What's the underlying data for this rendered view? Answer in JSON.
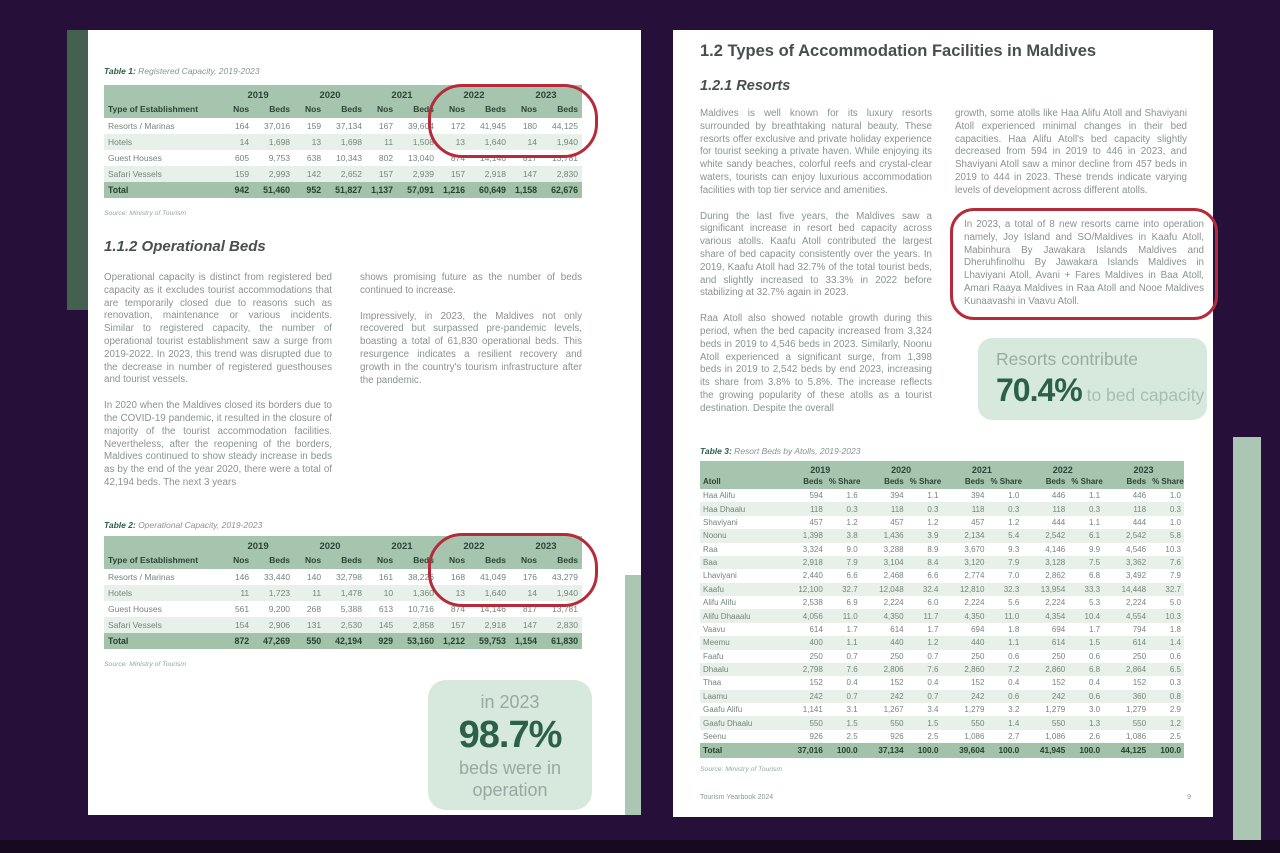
{
  "colors": {
    "background_purple": "#26103a",
    "annotation_red": "#b52b3a",
    "table_header_green": "#a6c5ae",
    "row_stripe_green": "#e7f0e9",
    "accent_dark_green": "#2b6149",
    "callout_bg_green": "#d7e8dc",
    "edge_tab_dark_green": "#44614f",
    "edge_tab_sage": "#abc7b3"
  },
  "left_page": {
    "table1": {
      "title_label": "Table 1:",
      "title_caption": " Registered Capacity, 2019-2023",
      "years": [
        "2019",
        "2020",
        "2021",
        "2022",
        "2023"
      ],
      "sub_headers": [
        "Nos",
        "Beds"
      ],
      "row_header": "Type of Establishment",
      "rows": [
        {
          "label": "Resorts / Marinas",
          "values": [
            "164",
            "37,016",
            "159",
            "37,134",
            "167",
            "39,604",
            "172",
            "41,945",
            "180",
            "44,125"
          ]
        },
        {
          "label": "Hotels",
          "values": [
            "14",
            "1,698",
            "13",
            "1,698",
            "11",
            "1,508",
            "13",
            "1,640",
            "14",
            "1,940"
          ]
        },
        {
          "label": "Guest Houses",
          "values": [
            "605",
            "9,753",
            "638",
            "10,343",
            "802",
            "13,040",
            "874",
            "14,146",
            "817",
            "13,781"
          ]
        },
        {
          "label": "Safari Vessels",
          "values": [
            "159",
            "2,993",
            "142",
            "2,652",
            "157",
            "2,939",
            "157",
            "2,918",
            "147",
            "2,830"
          ]
        }
      ],
      "total_row": {
        "label": "Total",
        "values": [
          "942",
          "51,460",
          "952",
          "51,827",
          "1,137",
          "57,091",
          "1,216",
          "60,649",
          "1,158",
          "62,676"
        ]
      },
      "source": "Source: Ministry of Tourism"
    },
    "section": {
      "heading": "1.1.2 Operational Beds",
      "col1_p1": "Operational capacity is distinct from registered bed capacity as it excludes tourist accommodations that are temporarily closed due to reasons such as renovation, maintenance or various incidents. Similar to registered capacity, the number of operational tourist establishment saw a surge from 2019-2022. In 2023, this trend was disrupted due to the decrease in number of registered guesthouses and tourist vessels.",
      "col1_p2": "In 2020 when the Maldives closed its borders due to the COVID-19 pandemic, it resulted in the closure of majority of the tourist accommodation facilities. Nevertheless, after the reopening of the borders, Maldives continued to show steady increase in beds as by the end of the year 2020, there were a total of 42,194 beds. The next 3 years",
      "col2_p1": "shows promising future as the number of beds continued to increase.",
      "col2_p2": "Impressively, in 2023, the Maldives not only recovered but surpassed pre-pandemic levels, boasting a total of 61,830 operational beds. This resurgence indicates a resilient recovery and growth in the country's tourism infrastructure after the pandemic."
    },
    "table2": {
      "title_label": "Table 2:",
      "title_caption": " Operational Capacity, 2019-2023",
      "years": [
        "2019",
        "2020",
        "2021",
        "2022",
        "2023"
      ],
      "sub_headers": [
        "Nos",
        "Beds"
      ],
      "row_header": "Type of Establishment",
      "rows": [
        {
          "label": "Resorts / Marinas",
          "values": [
            "146",
            "33,440",
            "140",
            "32,798",
            "161",
            "38,226",
            "168",
            "41,049",
            "176",
            "43,279"
          ]
        },
        {
          "label": "Hotels",
          "values": [
            "11",
            "1,723",
            "11",
            "1,478",
            "10",
            "1,360",
            "13",
            "1,640",
            "14",
            "1,940"
          ]
        },
        {
          "label": "Guest Houses",
          "values": [
            "561",
            "9,200",
            "268",
            "5,388",
            "613",
            "10,716",
            "874",
            "14,146",
            "817",
            "13,781"
          ]
        },
        {
          "label": "Safari Vessels",
          "values": [
            "154",
            "2,906",
            "131",
            "2,530",
            "145",
            "2,858",
            "157",
            "2,918",
            "147",
            "2,830"
          ]
        }
      ],
      "total_row": {
        "label": "Total",
        "values": [
          "872",
          "47,269",
          "550",
          "42,194",
          "929",
          "53,160",
          "1,212",
          "59,753",
          "1,154",
          "61,830"
        ]
      },
      "source": "Source: Ministry of Tourism"
    },
    "callout": {
      "line1": "in 2023",
      "value": "98.7%",
      "line2": "beds were in operation"
    }
  },
  "right_page": {
    "heading": "1.2 Types of Accommodation Facilities in Maldives",
    "subheading": "1.2.1 Resorts",
    "col1_p1": "Maldives is well known for its luxury resorts surrounded by breathtaking natural beauty. These resorts offer exclusive and private holiday experience for tourist seeking a private haven. While enjoying its white sandy beaches, colorful reefs and crystal-clear waters, tourists can enjoy luxurious accommodation facilities with top tier service and amenities.",
    "col1_p2": "During the last five years, the Maldives saw a significant increase in resort bed capacity across various atolls. Kaafu Atoll contributed the largest share of bed capacity consistently over the years. In 2019, Kaafu Atoll had 32.7% of the total tourist beds, and slightly increased to 33.3% in 2022 before stabilizing at 32.7% again in 2023.",
    "col1_p3": "Raa Atoll also showed notable growth during this period, when the bed capacity increased from 3,324 beds in 2019 to 4,546 beds in 2023. Similarly, Noonu Atoll experienced a significant surge, from 1,398 beds in 2019 to 2,542 beds by end 2023, increasing its share from 3.8% to 5.8%. The increase reflects the growing popularity of these atolls as a tourist destination. Despite the overall",
    "col2_p1": "growth, some atolls like Haa Alifu Atoll and Shaviyani Atoll experienced minimal changes in their bed capacities. Haa Alifu Atoll's bed capacity slightly decreased from 594 in 2019 to 446 in 2023, and Shaviyani Atoll saw a minor decline from 457 beds in 2019 to 444 in 2023. These trends indicate varying levels of development across different atolls.",
    "circled_paragraph": "In 2023, a total of 8 new resorts came into operation namely, Joy Island and SO/Maldives in Kaafu Atoll, Mabinhura By Jawakara Islands Maldives and Dheruhfinolhu By Jawakara Islands Maldives in Lhaviyani Atoll, Avani + Fares Maldives in Baa Atoll, Amari Raaya Maldives in Raa Atoll and Nooe Maldives Kunaavashi in Vaavu Atoll.",
    "callout": {
      "line1": "Resorts contribute",
      "value": "70.4%",
      "suffix": " to bed capacity"
    },
    "table3": {
      "title_label": "Table 3:",
      "title_caption": " Resort Beds by Atolls, 2019-2023",
      "years": [
        "2019",
        "2020",
        "2021",
        "2022",
        "2023"
      ],
      "sub_headers": [
        "Beds",
        "% Share"
      ],
      "row_header": "Atoll",
      "rows": [
        {
          "label": "Haa Alifu",
          "values": [
            "594",
            "1.6",
            "394",
            "1.1",
            "394",
            "1.0",
            "446",
            "1.1",
            "446",
            "1.0"
          ]
        },
        {
          "label": "Haa Dhaalu",
          "values": [
            "118",
            "0.3",
            "118",
            "0.3",
            "118",
            "0.3",
            "118",
            "0.3",
            "118",
            "0.3"
          ]
        },
        {
          "label": "Shaviyani",
          "values": [
            "457",
            "1.2",
            "457",
            "1.2",
            "457",
            "1.2",
            "444",
            "1.1",
            "444",
            "1.0"
          ]
        },
        {
          "label": "Noonu",
          "values": [
            "1,398",
            "3.8",
            "1,436",
            "3.9",
            "2,134",
            "5.4",
            "2,542",
            "6.1",
            "2,542",
            "5.8"
          ]
        },
        {
          "label": "Raa",
          "values": [
            "3,324",
            "9.0",
            "3,288",
            "8.9",
            "3,670",
            "9.3",
            "4,146",
            "9.9",
            "4,546",
            "10.3"
          ]
        },
        {
          "label": "Baa",
          "values": [
            "2,918",
            "7.9",
            "3,104",
            "8.4",
            "3,120",
            "7.9",
            "3,128",
            "7.5",
            "3,362",
            "7.6"
          ]
        },
        {
          "label": "Lhaviyani",
          "values": [
            "2,440",
            "6.6",
            "2,468",
            "6.6",
            "2,774",
            "7.0",
            "2,862",
            "6.8",
            "3,492",
            "7.9"
          ]
        },
        {
          "label": "Kaafu",
          "values": [
            "12,100",
            "32.7",
            "12,048",
            "32.4",
            "12,810",
            "32.3",
            "13,954",
            "33.3",
            "14,448",
            "32.7"
          ]
        },
        {
          "label": "Alifu Alifu",
          "values": [
            "2,538",
            "6.9",
            "2,224",
            "6.0",
            "2,224",
            "5.6",
            "2,224",
            "5.3",
            "2,224",
            "5.0"
          ]
        },
        {
          "label": "Alifu Dhaaalu",
          "values": [
            "4,056",
            "11.0",
            "4,350",
            "11.7",
            "4,350",
            "11.0",
            "4,354",
            "10.4",
            "4,554",
            "10.3"
          ]
        },
        {
          "label": "Vaavu",
          "values": [
            "614",
            "1.7",
            "614",
            "1.7",
            "694",
            "1.8",
            "694",
            "1.7",
            "794",
            "1.8"
          ]
        },
        {
          "label": "Meemu",
          "values": [
            "400",
            "1.1",
            "440",
            "1.2",
            "440",
            "1.1",
            "614",
            "1.5",
            "614",
            "1.4"
          ]
        },
        {
          "label": "Faafu",
          "values": [
            "250",
            "0.7",
            "250",
            "0.7",
            "250",
            "0.6",
            "250",
            "0.6",
            "250",
            "0.6"
          ]
        },
        {
          "label": "Dhaalu",
          "values": [
            "2,798",
            "7.6",
            "2,806",
            "7.6",
            "2,860",
            "7.2",
            "2,860",
            "6.8",
            "2,864",
            "6.5"
          ]
        },
        {
          "label": "Thaa",
          "values": [
            "152",
            "0.4",
            "152",
            "0.4",
            "152",
            "0.4",
            "152",
            "0.4",
            "152",
            "0.3"
          ]
        },
        {
          "label": "Laamu",
          "values": [
            "242",
            "0.7",
            "242",
            "0.7",
            "242",
            "0.6",
            "242",
            "0.6",
            "360",
            "0.8"
          ]
        },
        {
          "label": "Gaafu Alifu",
          "values": [
            "1,141",
            "3.1",
            "1,267",
            "3.4",
            "1,279",
            "3.2",
            "1,279",
            "3.0",
            "1,279",
            "2.9"
          ]
        },
        {
          "label": "Gaafu Dhaalu",
          "values": [
            "550",
            "1.5",
            "550",
            "1.5",
            "550",
            "1.4",
            "550",
            "1.3",
            "550",
            "1.2"
          ]
        },
        {
          "label": "Seenu",
          "values": [
            "926",
            "2.5",
            "926",
            "2.5",
            "1,086",
            "2.7",
            "1,086",
            "2.6",
            "1,086",
            "2.5"
          ]
        }
      ],
      "total_row": {
        "label": "Total",
        "values": [
          "37,016",
          "100.0",
          "37,134",
          "100.0",
          "39,604",
          "100.0",
          "41,945",
          "100.0",
          "44,125",
          "100.0"
        ]
      },
      "source": "Source: Ministry of Tourism"
    },
    "footer": {
      "left": "Tourism Yearbook 2024",
      "page": "9"
    }
  }
}
